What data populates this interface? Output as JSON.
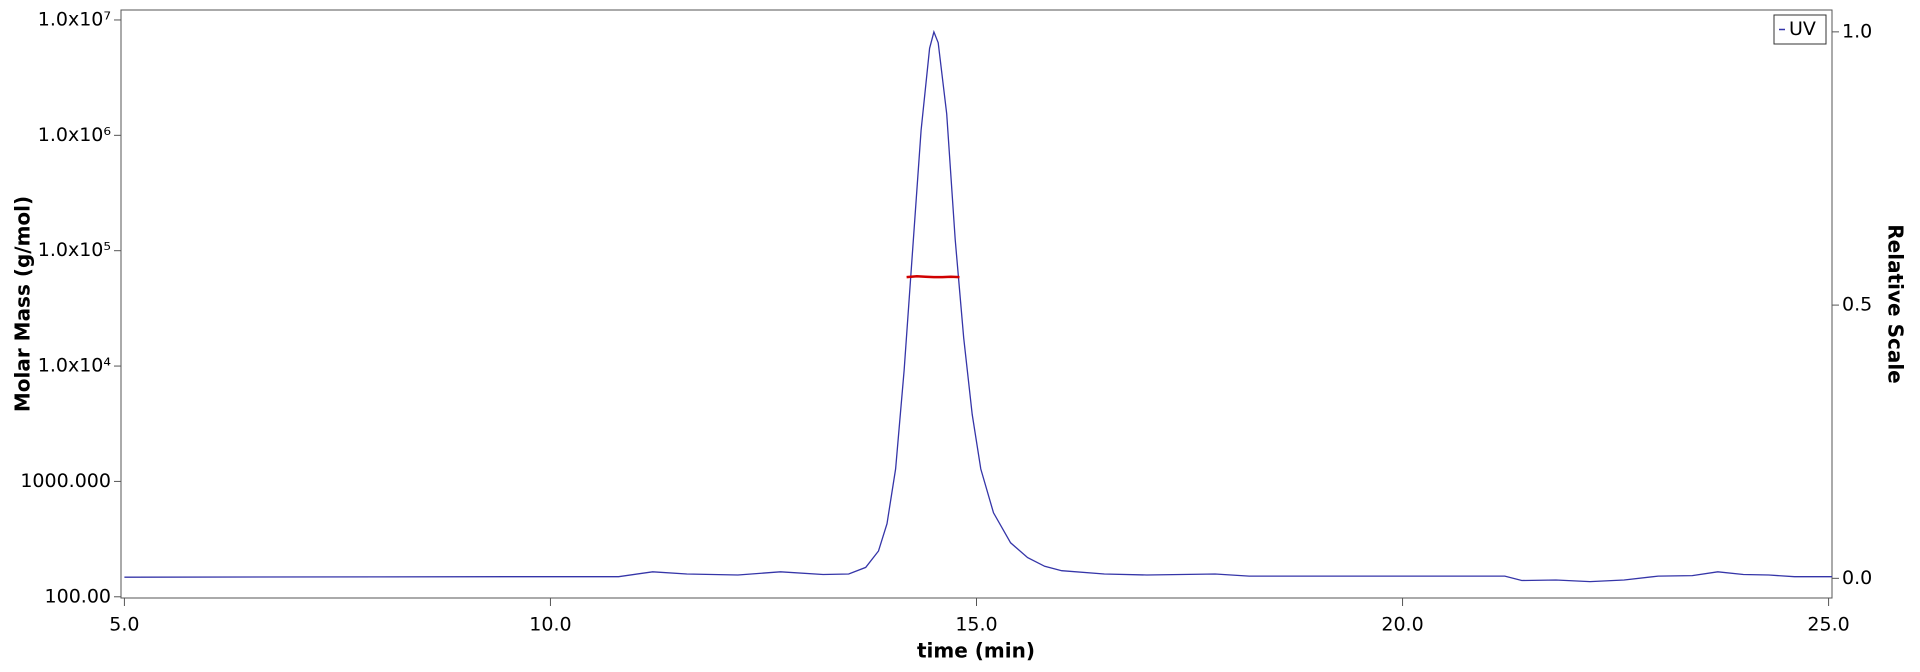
{
  "chart_data": {
    "type": "line",
    "xlabel": "time (min)",
    "ylabel": "Molar Mass (g/mol)",
    "y2label": "Relative Scale",
    "xlim": [
      4.96,
      25.04
    ],
    "xticks": [
      {
        "value": 5,
        "label": "5.0"
      },
      {
        "value": 10,
        "label": "10.0"
      },
      {
        "value": 15,
        "label": "15.0"
      },
      {
        "value": 20,
        "label": "20.0"
      },
      {
        "value": 25,
        "label": "25.0"
      }
    ],
    "ylog": true,
    "ylim": [
      97.6,
      12200000
    ],
    "yticks": [
      {
        "value": 100,
        "label": "100.00"
      },
      {
        "value": 1000,
        "label": "1000.000"
      },
      {
        "value": 10000,
        "label": "1.0x10⁴"
      },
      {
        "value": 100000,
        "label": "1.0x10⁵"
      },
      {
        "value": 1000000,
        "label": "1.0x10⁶"
      },
      {
        "value": 10000000,
        "label": "1.0x10⁷"
      }
    ],
    "y2lim": [
      -0.036,
      1.04
    ],
    "y2ticks": [
      {
        "value": 0,
        "label": "0.0"
      },
      {
        "value": 0.5,
        "label": "0.5"
      },
      {
        "value": 1,
        "label": "1.0"
      }
    ],
    "legend": "upper right",
    "series": [
      {
        "name": "UV",
        "color": "#3535a8",
        "axis": "y2",
        "x": [
          5.0,
          9.5,
          10.8,
          11.2,
          11.6,
          12.2,
          12.7,
          13.2,
          13.5,
          13.7,
          13.85,
          13.95,
          14.05,
          14.15,
          14.25,
          14.35,
          14.45,
          14.5,
          14.55,
          14.65,
          14.75,
          14.85,
          14.95,
          15.05,
          15.2,
          15.4,
          15.6,
          15.8,
          16.0,
          16.5,
          17.0,
          17.8,
          18.2,
          19.0,
          20.0,
          21.2,
          21.4,
          21.8,
          22.2,
          22.6,
          23.0,
          23.4,
          23.7,
          24.0,
          24.3,
          24.6,
          25.04
        ],
        "values": [
          0.002,
          0.003,
          0.003,
          0.012,
          0.008,
          0.006,
          0.012,
          0.007,
          0.008,
          0.02,
          0.05,
          0.1,
          0.2,
          0.38,
          0.6,
          0.82,
          0.97,
          1.0,
          0.98,
          0.85,
          0.62,
          0.44,
          0.3,
          0.2,
          0.12,
          0.065,
          0.038,
          0.022,
          0.014,
          0.008,
          0.006,
          0.008,
          0.004,
          0.004,
          0.004,
          0.004,
          -0.004,
          -0.003,
          -0.006,
          -0.003,
          0.004,
          0.005,
          0.012,
          0.007,
          0.006,
          0.003,
          0.003
        ]
      },
      {
        "color": "#d00000",
        "x": [
          14.18,
          14.3,
          14.4,
          14.5,
          14.6,
          14.7,
          14.8
        ],
        "values": [
          59000,
          60000,
          59500,
          59000,
          59000,
          59500,
          59000
        ]
      }
    ]
  }
}
